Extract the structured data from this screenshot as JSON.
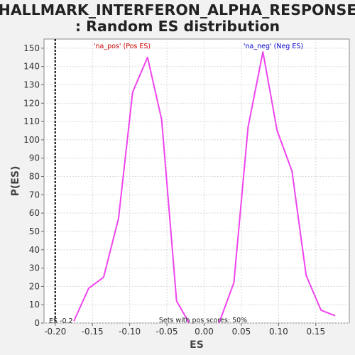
{
  "title_line1": "HALLMARK_INTERFERON_ALPHA_RESPONSE",
  "title_line2": ": Random ES distribution",
  "colors": {
    "curve": "#ee44ee",
    "pos_label": "#cc0000",
    "neg_label": "#0000cc",
    "es_line": "#000000"
  },
  "chart_data": {
    "type": "line",
    "xlabel": "ES",
    "ylabel": "P(ES)",
    "xlim": [
      -0.215,
      0.195
    ],
    "ylim": [
      0,
      155
    ],
    "x_ticks": [
      -0.2,
      -0.15,
      -0.1,
      -0.05,
      0.0,
      0.05,
      0.1,
      0.15
    ],
    "x_tick_labels": [
      "-0.20",
      "-0.15",
      "-0.10",
      "-0.05",
      "0.00",
      "0.05",
      "0.10",
      "0.15"
    ],
    "y_ticks": [
      0,
      10,
      20,
      30,
      40,
      50,
      60,
      70,
      80,
      90,
      100,
      110,
      120,
      130,
      140,
      150
    ],
    "y_tick_labels": [
      "0",
      "10",
      "20",
      "30",
      "40",
      "50",
      "60",
      "70",
      "80",
      "90",
      "100",
      "110",
      "120",
      "130",
      "140",
      "150"
    ],
    "grid": true,
    "series": [
      {
        "name": "'na_pos' (Pos ES)",
        "x": [
          -0.175,
          -0.155,
          -0.135,
          -0.115,
          -0.096,
          -0.076,
          -0.057,
          -0.037,
          -0.02
        ],
        "y": [
          1,
          19,
          25,
          57,
          126,
          145,
          111,
          12,
          0
        ]
      },
      {
        "name": "'na_neg' (Neg ES)",
        "x": [
          0.02,
          0.04,
          0.059,
          0.079,
          0.098,
          0.118,
          0.137,
          0.157,
          0.176
        ],
        "y": [
          0,
          22,
          107,
          148,
          105,
          83,
          26,
          7,
          4
        ]
      }
    ],
    "es_value": -0.2,
    "es_label": "ES -0.2",
    "annotation": "Sets with pos scores: 50%"
  }
}
